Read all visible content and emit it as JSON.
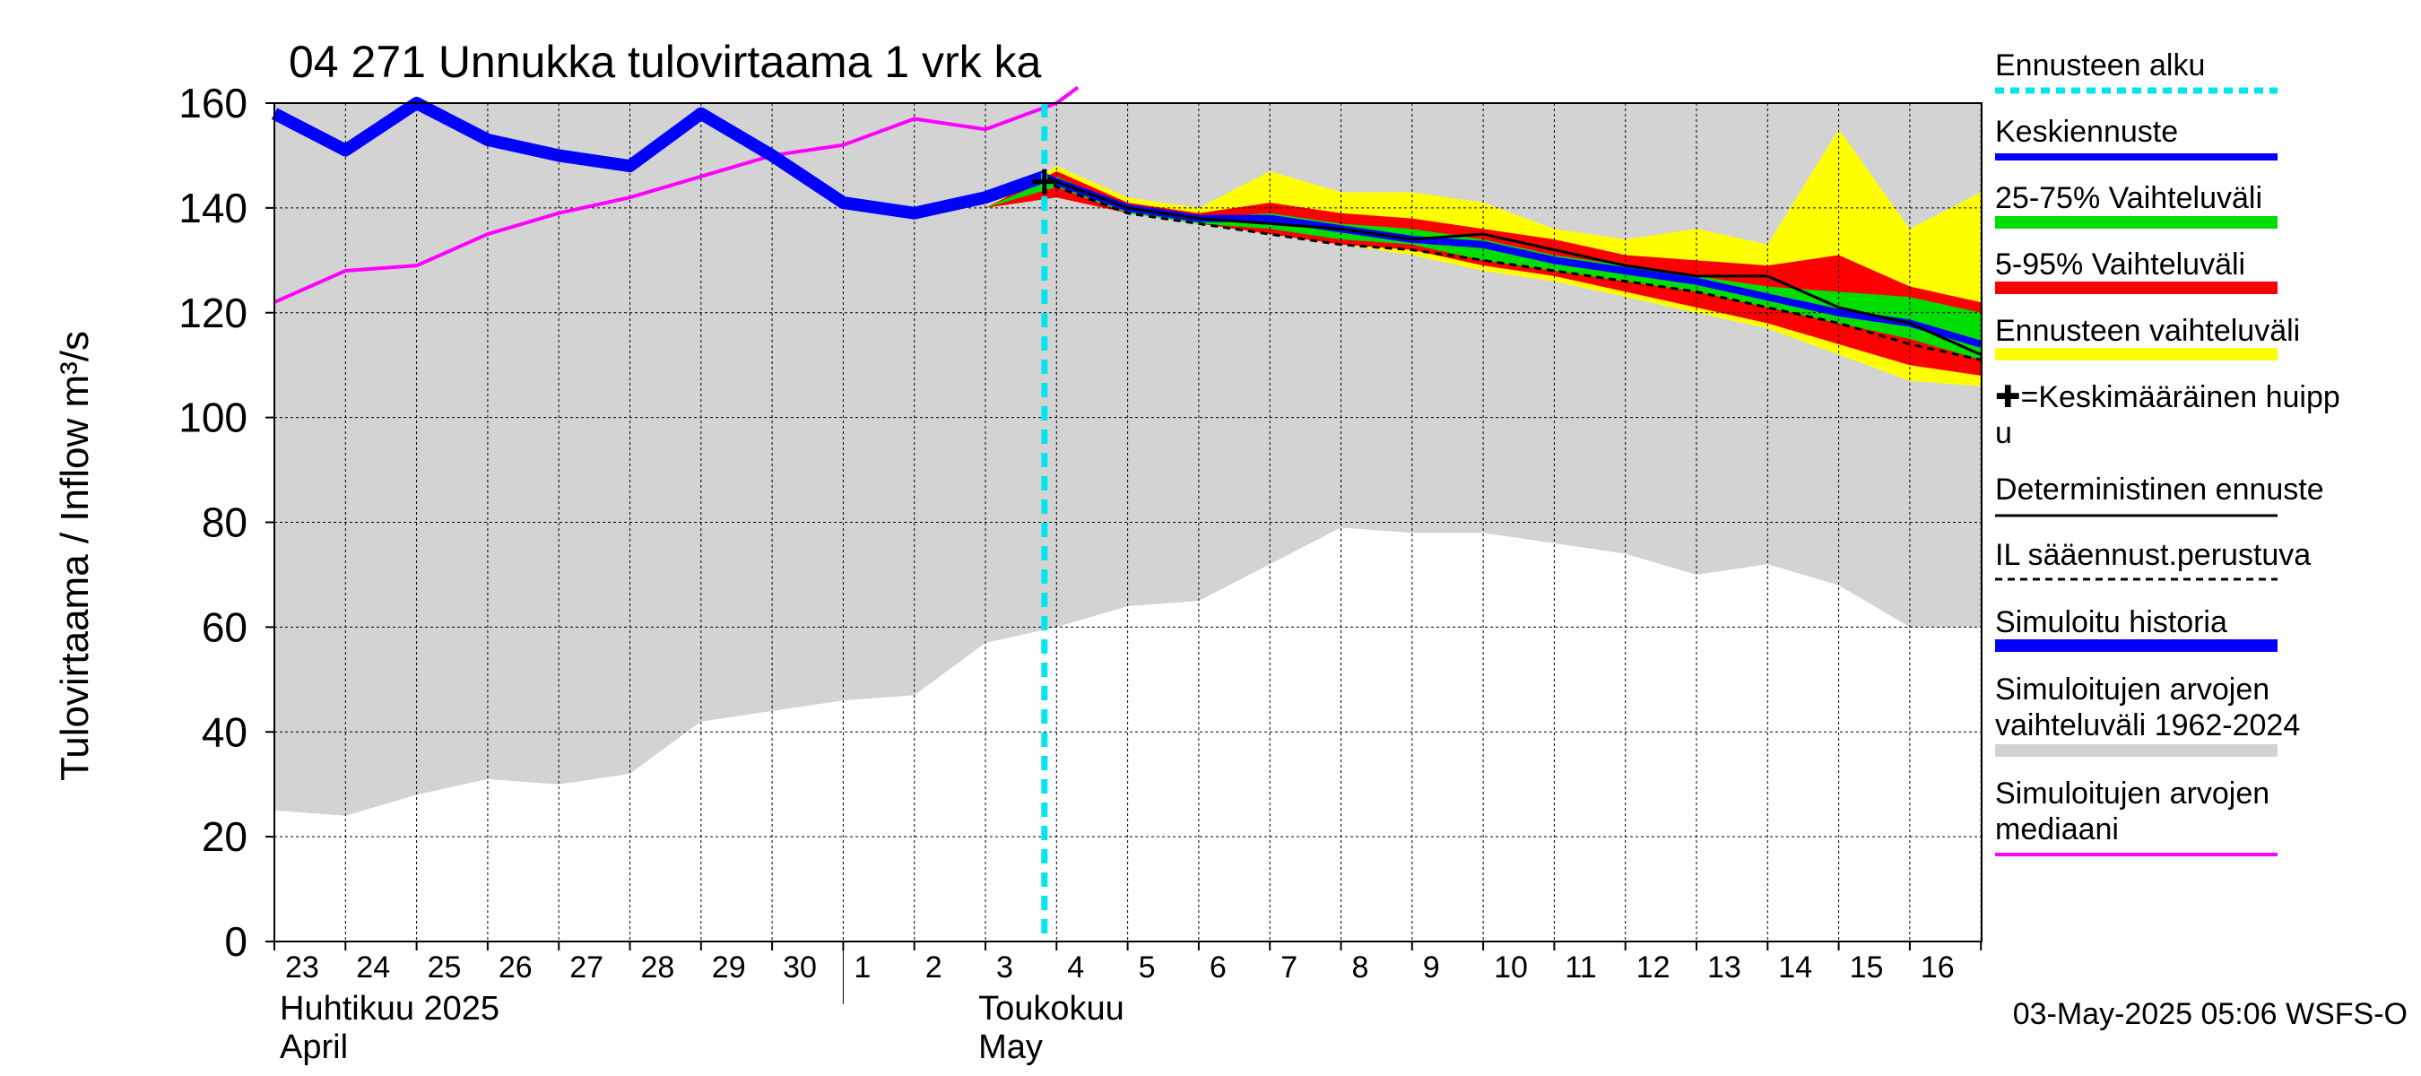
{
  "chart_data": {
    "type": "line",
    "title": "04 271 Unnukka tulovirtaama 1 vrk ka",
    "ylabel": "Tulovirtaama / Inflow    m³/s",
    "ylim": [
      0,
      160
    ],
    "yticks": [
      0,
      20,
      40,
      60,
      80,
      100,
      120,
      140,
      160
    ],
    "grid": true,
    "legend_position": "right",
    "x_tick_labels": [
      "23",
      "24",
      "25",
      "26",
      "27",
      "28",
      "29",
      "30",
      "1",
      "2",
      "3",
      "4",
      "5",
      "6",
      "7",
      "8",
      "9",
      "10",
      "11",
      "12",
      "13",
      "14",
      "15",
      "16"
    ],
    "month_labels": [
      {
        "fi": "Huhtikuu  2025",
        "en": "April"
      },
      {
        "fi": "Toukokuu",
        "en": "May"
      }
    ],
    "timestamp": "03-May-2025 05:06 WSFS-O",
    "forecast_start_x": 10.83,
    "series": [
      {
        "name": "Simuloitujen arvojen vaihteluväli 1962-2024",
        "kind": "band",
        "color": "#d3d3d3",
        "x": [
          0,
          1,
          2,
          3,
          4,
          5,
          6,
          7,
          8,
          9,
          10,
          11,
          12,
          13,
          14,
          15,
          16,
          17,
          18,
          19,
          20,
          21,
          22,
          23,
          24
        ],
        "upper": [
          160,
          160,
          160,
          160,
          160,
          160,
          160,
          160,
          160,
          160,
          160,
          160,
          160,
          160,
          160,
          160,
          160,
          160,
          160,
          160,
          160,
          160,
          160,
          160,
          160
        ],
        "lower": [
          25,
          24,
          28,
          31,
          30,
          32,
          42,
          44,
          46,
          47,
          57,
          60,
          64,
          65,
          72,
          79,
          78,
          78,
          76,
          74,
          70,
          72,
          68,
          60,
          60
        ]
      },
      {
        "name": "Ennusteen vaihteluväli",
        "kind": "band",
        "color": "#ffff00",
        "x": [
          10,
          11,
          12,
          13,
          14,
          15,
          16,
          17,
          18,
          19,
          20,
          21,
          22,
          23,
          24
        ],
        "upper": [
          140,
          148,
          142,
          140,
          147,
          143,
          143,
          141,
          136,
          134,
          136,
          133,
          155,
          136,
          143
        ],
        "lower": [
          140,
          142,
          139,
          137,
          135,
          133,
          131,
          128,
          126,
          123,
          120,
          117,
          112,
          107,
          106
        ]
      },
      {
        "name": "5-95% Vaihteluväli",
        "kind": "band",
        "color": "#ff0000",
        "x": [
          10,
          11,
          12,
          13,
          14,
          15,
          16,
          17,
          18,
          19,
          20,
          21,
          22,
          23,
          24
        ],
        "upper": [
          140,
          147,
          141,
          139,
          141,
          139,
          138,
          136,
          134,
          131,
          130,
          129,
          131,
          125,
          122
        ],
        "lower": [
          140,
          142,
          139,
          137,
          135,
          133,
          132,
          129,
          127,
          124,
          121,
          118,
          114,
          110,
          108
        ]
      },
      {
        "name": "25-75% Vaihteluväli",
        "kind": "band",
        "color": "#00dd00",
        "x": [
          10,
          11,
          12,
          13,
          14,
          15,
          16,
          17,
          18,
          19,
          20,
          21,
          22,
          23,
          24
        ],
        "upper": [
          140,
          146,
          140,
          138,
          139,
          137,
          136,
          134,
          131,
          129,
          127,
          125,
          124,
          123,
          120
        ],
        "lower": [
          140,
          144,
          139,
          137,
          136,
          134,
          133,
          130,
          128,
          126,
          124,
          121,
          118,
          115,
          111
        ]
      },
      {
        "name": "Simuloitu historia",
        "kind": "line",
        "color": "#0000ff",
        "x": [
          0,
          1,
          2,
          3,
          4,
          5,
          6,
          7,
          8,
          9,
          10,
          10.83
        ],
        "values": [
          158,
          151,
          160,
          153,
          150,
          148,
          158,
          150,
          141,
          139,
          142,
          146
        ]
      },
      {
        "name": "Keskiennuste",
        "kind": "line",
        "color": "#0000ff",
        "x": [
          10.83,
          11,
          12,
          13,
          14,
          15,
          16,
          17,
          18,
          19,
          20,
          21,
          22,
          23,
          24
        ],
        "values": [
          146,
          145,
          140,
          138,
          138,
          136,
          134,
          133,
          130,
          128,
          126,
          123,
          120,
          118,
          114
        ]
      },
      {
        "name": "Deterministinen ennuste",
        "kind": "line",
        "color": "#000000",
        "x": [
          10.83,
          11,
          12,
          13,
          14,
          15,
          16,
          17,
          18,
          19,
          20,
          21,
          22,
          23,
          24
        ],
        "values": [
          146,
          145,
          140,
          138,
          137,
          136,
          134,
          135,
          132,
          129,
          127,
          127,
          121,
          118,
          112
        ]
      },
      {
        "name": "IL sääennust.perustuva",
        "kind": "dashed",
        "color": "#000000",
        "x": [
          10.83,
          11,
          12,
          13,
          14,
          15,
          16,
          17,
          18,
          19,
          20,
          21,
          22,
          23,
          24
        ],
        "values": [
          146,
          144,
          139,
          137,
          135,
          133,
          132,
          130,
          128,
          126,
          124,
          121,
          118,
          114,
          111
        ]
      },
      {
        "name": "Simuloitujen arvojen mediaani",
        "kind": "line",
        "color": "#ff00ff",
        "x": [
          0,
          1,
          2,
          3,
          4,
          5,
          6,
          7,
          8,
          9,
          10,
          11,
          11.3
        ],
        "values": [
          122,
          128,
          129,
          135,
          139,
          142,
          146,
          150,
          152,
          157,
          155,
          160,
          163
        ]
      }
    ],
    "peak_marker": {
      "x": 10.83,
      "y": 145
    },
    "legend": [
      {
        "label": "Ennusteen alku",
        "color": "#00e5ee",
        "style": "dotted",
        "width": 7
      },
      {
        "label": "Keskiennuste",
        "color": "#0000ff",
        "style": "solid",
        "width": 8
      },
      {
        "label": "25-75% Vaihteluväli",
        "color": "#00dd00",
        "style": "solid",
        "width": 14
      },
      {
        "label": "5-95% Vaihteluväli",
        "color": "#ff0000",
        "style": "solid",
        "width": 14
      },
      {
        "label": "Ennusteen vaihteluväli",
        "color": "#ffff00",
        "style": "solid",
        "width": 14
      },
      {
        "label": "✚=Keskimääräinen huipp",
        "label2": "u",
        "color": "",
        "style": "none",
        "width": 0
      },
      {
        "label": "Deterministinen ennuste",
        "color": "#000000",
        "style": "solid",
        "width": 3
      },
      {
        "label": "IL sääennust.perustuva",
        "color": "#000000",
        "style": "dashed",
        "width": 3
      },
      {
        "label": "Simuloitu historia",
        "color": "#0000ff",
        "style": "solid",
        "width": 14
      },
      {
        "label": "Simuloitujen arvojen",
        "label2": "vaihteluväli 1962-2024",
        "color": "#d3d3d3",
        "style": "solid",
        "width": 14
      },
      {
        "label": "Simuloitujen arvojen",
        "label2": "mediaani",
        "color": "#ff00ff",
        "style": "solid",
        "width": 4
      }
    ]
  }
}
